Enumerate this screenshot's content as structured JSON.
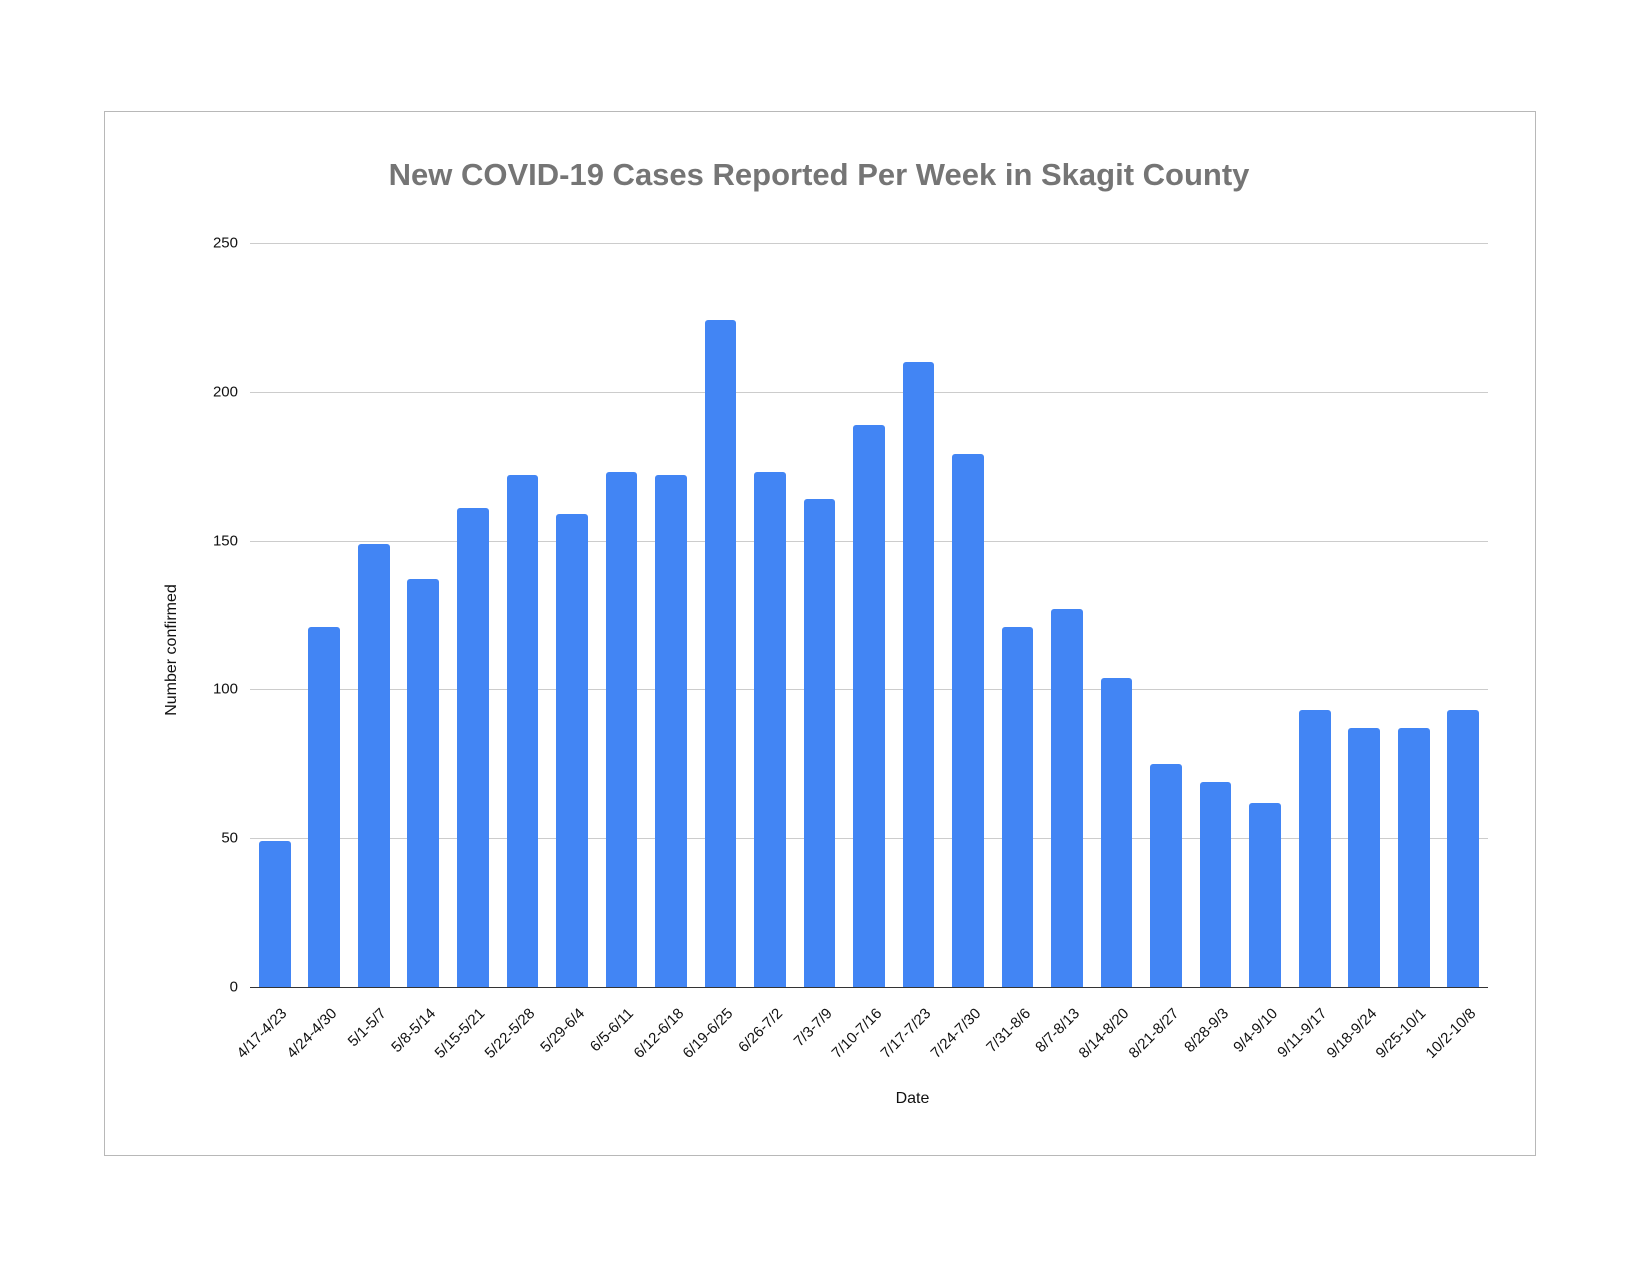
{
  "chart_data": {
    "type": "bar",
    "title": "New COVID-19 Cases Reported Per Week in Skagit County",
    "xlabel": "Date",
    "ylabel": "Number confirmed",
    "ylim": [
      0,
      250
    ],
    "yticks": [
      0,
      50,
      100,
      150,
      200,
      250
    ],
    "grid": true,
    "legend": "none",
    "bar_color": "#4285f4",
    "categories": [
      "4/17-4/23",
      "4/24-4/30",
      "5/1-5/7",
      "5/8-5/14",
      "5/15-5/21",
      "5/22-5/28",
      "5/29-6/4",
      "6/5-6/11",
      "6/12-6/18",
      "6/19-6/25",
      "6/26-7/2",
      "7/3-7/9",
      "7/10-7/16",
      "7/17-7/23",
      "7/24-7/30",
      "7/31-8/6",
      "8/7-8/13",
      "8/14-8/20",
      "8/21-8/27",
      "8/28-9/3",
      "9/4-9/10",
      "9/11-9/17",
      "9/18-9/24",
      "9/25-10/1",
      "10/2-10/8"
    ],
    "values": [
      49,
      121,
      149,
      137,
      161,
      172,
      159,
      173,
      172,
      224,
      173,
      164,
      189,
      210,
      179,
      121,
      127,
      104,
      75,
      69,
      62,
      93,
      87,
      87,
      93
    ]
  }
}
